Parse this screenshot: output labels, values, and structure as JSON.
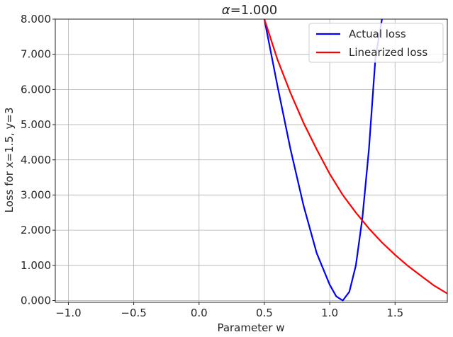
{
  "chart_data": {
    "type": "line",
    "title_prefix": "α",
    "title_value": "=1.000",
    "xlabel": "Parameter w",
    "ylabel": "Loss for x=1.5, y=3",
    "xlim": [
      -1.1,
      1.9
    ],
    "ylim": [
      -0.05,
      8.0
    ],
    "x_ticks": [
      -1.0,
      -0.5,
      0.0,
      0.5,
      1.0,
      1.5
    ],
    "x_tick_labels": [
      "−1.0",
      "−0.5",
      "0.0",
      "0.5",
      "1.0",
      "1.5"
    ],
    "y_ticks": [
      0,
      1,
      2,
      3,
      4,
      5,
      6,
      7,
      8
    ],
    "y_tick_labels": [
      "0.000",
      "1.000",
      "2.000",
      "3.000",
      "4.000",
      "5.000",
      "6.000",
      "7.000",
      "8.000"
    ],
    "grid": true,
    "legend_position": "top-right",
    "series": [
      {
        "name": "Actual loss",
        "color": "#0000ff",
        "x": [
          0.5,
          0.6,
          0.7,
          0.8,
          0.9,
          1.0,
          1.05,
          1.1,
          1.15,
          1.2,
          1.25,
          1.3,
          1.35,
          1.4
        ],
        "y": [
          8.0,
          6.1,
          4.3,
          2.7,
          1.35,
          0.45,
          0.12,
          0.0,
          0.25,
          1.0,
          2.35,
          4.3,
          6.9,
          8.0
        ]
      },
      {
        "name": "Linearized loss",
        "color": "#ff0000",
        "x": [
          0.5,
          0.6,
          0.7,
          0.8,
          0.9,
          1.0,
          1.1,
          1.2,
          1.3,
          1.4,
          1.5,
          1.6,
          1.7,
          1.8,
          1.9
        ],
        "y": [
          8.0,
          6.85,
          5.9,
          5.05,
          4.3,
          3.6,
          3.0,
          2.5,
          2.05,
          1.65,
          1.3,
          0.98,
          0.7,
          0.42,
          0.2
        ]
      }
    ]
  }
}
